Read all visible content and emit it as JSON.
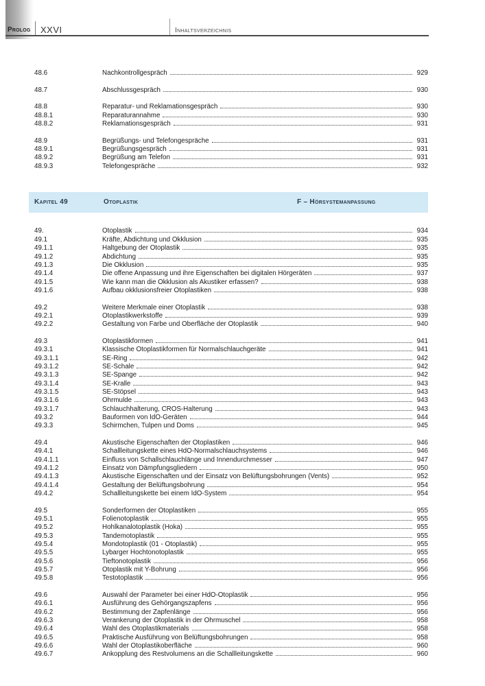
{
  "header": {
    "section_label": "Prolog",
    "page_number": "XXVI",
    "title": "Inhaltsverzeichnis"
  },
  "chapter_banner": {
    "chapter_label": "Kapitel 49",
    "chapter_title": "Otoplastik",
    "part_label": "F – Hörsystemanpassung"
  },
  "colors": {
    "banner_bg": "#d2e9f6",
    "banner_text": "#2a3b4c",
    "body_text": "#1c1c1c"
  },
  "toc_before_banner": [
    [
      {
        "num": "48.6",
        "title": "Nachkontrollgespräch",
        "page": "929"
      }
    ],
    [
      {
        "num": "48.7",
        "title": "Abschlussgespräch",
        "page": "930"
      }
    ],
    [
      {
        "num": "48.8",
        "title": "Reparatur- und Reklamationsgespräch",
        "page": "930"
      },
      {
        "num": "48.8.1",
        "title": "Reparaturannahme",
        "page": "930"
      },
      {
        "num": "48.8.2",
        "title": "Reklamationsgespräch",
        "page": "931"
      }
    ],
    [
      {
        "num": "48.9",
        "title": "Begrüßungs- und Telefongespräche",
        "page": "931"
      },
      {
        "num": "48.9.1",
        "title": "Begrüßungsgespräch",
        "page": "931"
      },
      {
        "num": "48.9.2",
        "title": "Begrüßung am Telefon",
        "page": "931"
      },
      {
        "num": "48.9.3",
        "title": "Telefongespräche",
        "page": "932"
      }
    ]
  ],
  "toc_after_banner": [
    [
      {
        "num": "49.",
        "title": "Otoplastik",
        "page": "934"
      },
      {
        "num": "49.1",
        "title": "Kräfte, Abdichtung und Okklusion",
        "page": "935"
      },
      {
        "num": "49.1.1",
        "title": "Haltgebung der Otoplastik",
        "page": "935"
      },
      {
        "num": "49.1.2",
        "title": "Abdichtung",
        "page": "935"
      },
      {
        "num": "49.1.3",
        "title": "Die Okklusion",
        "page": "935"
      },
      {
        "num": "49.1.4",
        "title": "Die offene Anpassung und ihre Eigenschaften bei digitalen Hörgeräten",
        "page": "937"
      },
      {
        "num": "49.1.5",
        "title": "Wie kann man die Okklusion als Akustiker erfassen?",
        "page": "938"
      },
      {
        "num": "49.1.6",
        "title": "Aufbau okklusionsfreier Otoplastiken",
        "page": "938"
      }
    ],
    [
      {
        "num": "49.2",
        "title": "Weitere Merkmale einer Otoplastik",
        "page": "938"
      },
      {
        "num": "49.2.1",
        "title": "Otoplastikwerkstoffe",
        "page": "939"
      },
      {
        "num": "49.2.2",
        "title": "Gestaltung von Farbe und Oberfläche der Otoplastik",
        "page": "940"
      }
    ],
    [
      {
        "num": "49.3",
        "title": "Otoplastikformen",
        "page": "941"
      },
      {
        "num": "49.3.1",
        "title": "Klassische Otoplastikformen für Normalschlauchgeräte",
        "page": "941"
      },
      {
        "num": "49.3.1.1",
        "title": "SE-Ring",
        "page": "942"
      },
      {
        "num": "49.3.1.2",
        "title": "SE-Schale",
        "page": "942"
      },
      {
        "num": "49.3.1.3",
        "title": "SE-Spange",
        "page": "942"
      },
      {
        "num": "49.3.1.4",
        "title": "SE-Kralle",
        "page": "943"
      },
      {
        "num": "49.3.1.5",
        "title": "SE-Stöpsel",
        "page": "943"
      },
      {
        "num": "49.3.1.6",
        "title": "Ohrmulde",
        "page": "943"
      },
      {
        "num": "49.3.1.7",
        "title": "Schlauchhalterung, CROS-Halterung",
        "page": "943"
      },
      {
        "num": "49.3.2",
        "title": "Bauformen von IdO-Geräten",
        "page": "944"
      },
      {
        "num": "49.3.3",
        "title": "Schirmchen, Tulpen und Doms",
        "page": "945"
      }
    ],
    [
      {
        "num": "49.4",
        "title": "Akustische Eigenschaften der Otoplastiken",
        "page": "946"
      },
      {
        "num": "49.4.1",
        "title": "Schallleitungskette eines HdO-Normalschlauchsystems",
        "page": "946"
      },
      {
        "num": "49.4.1.1",
        "title": "Einfluss von Schallschlauchlänge und Innendurchmesser",
        "page": "947"
      },
      {
        "num": "49.4.1.2",
        "title": "Einsatz von Dämpfungsgliedern",
        "page": "950"
      },
      {
        "num": "49.4.1.3",
        "title": "Akustische Eigenschaften und der Einsatz von Belüftungsbohrungen (Vents)",
        "page": "952"
      },
      {
        "num": "49.4.1.4",
        "title": "Gestaltung der Belüftungsbohrung",
        "page": "954"
      },
      {
        "num": "49.4.2",
        "title": "Schallleitungskette bei einem IdO-System",
        "page": "954"
      }
    ],
    [
      {
        "num": "49.5",
        "title": "Sonderformen der Otoplastiken",
        "page": "955"
      },
      {
        "num": "49.5.1",
        "title": "Folienotoplastik",
        "page": "955"
      },
      {
        "num": "49.5.2",
        "title": "Hohlkanalotoplastik (Hoka)",
        "page": "955"
      },
      {
        "num": "49.5.3",
        "title": "Tandemotoplastik",
        "page": "955"
      },
      {
        "num": "49.5.4",
        "title": "Mondotoplastik (01 - Otoplastik)",
        "page": "955"
      },
      {
        "num": "49.5.5",
        "title": "Lybarger Hochtonotoplastik",
        "page": "955"
      },
      {
        "num": "49.5.6",
        "title": "Tieftonotoplastik",
        "page": "956"
      },
      {
        "num": "49.5.7",
        "title": "Otoplastik mit Y-Bohrung",
        "page": "956"
      },
      {
        "num": "49.5.8",
        "title": "Testotoplastik",
        "page": "956"
      }
    ],
    [
      {
        "num": "49.6",
        "title": "Auswahl der Parameter bei einer HdO-Otoplastik",
        "page": "956"
      },
      {
        "num": "49.6.1",
        "title": "Ausführung des Gehörgangszapfens",
        "page": "956"
      },
      {
        "num": "49.6.2",
        "title": "Bestimmung der Zapfenlänge",
        "page": "956"
      },
      {
        "num": "49.6.3",
        "title": "Verankerung der Otoplastik in der Ohrmuschel",
        "page": "958"
      },
      {
        "num": "49.6.4",
        "title": "Wahl des Otoplastikmaterials",
        "page": "958"
      },
      {
        "num": "49.6.5",
        "title": "Praktische Ausführung von Belüftungsbohrungen",
        "page": "958"
      },
      {
        "num": "49.6.6",
        "title": "Wahl der Otoplastikoberfläche",
        "page": "960"
      },
      {
        "num": "49.6.7",
        "title": "Ankopplung des Restvolumens an die Schallleitungskette",
        "page": "960"
      }
    ]
  ]
}
